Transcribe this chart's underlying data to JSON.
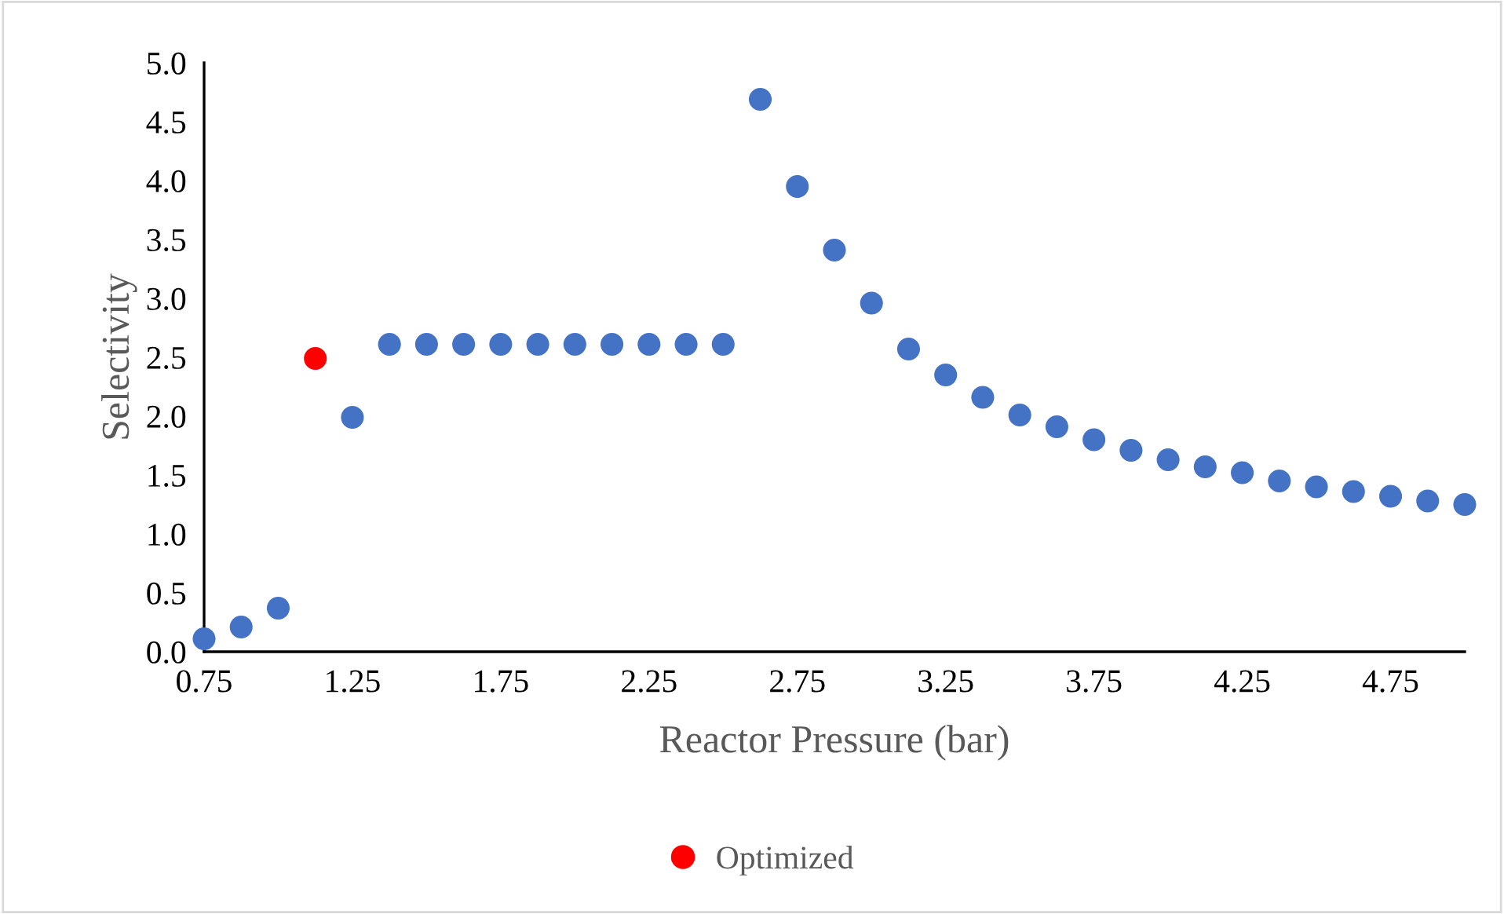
{
  "chart_data": {
    "type": "scatter",
    "xlabel": "Reactor Pressure (bar)",
    "ylabel": "Selectivity",
    "xlim": [
      0.75,
      5.0
    ],
    "ylim": [
      0,
      5
    ],
    "xticks": [
      0.75,
      1.25,
      1.75,
      2.25,
      2.75,
      3.25,
      3.75,
      4.25,
      4.75
    ],
    "yticks": [
      {
        "value": 0,
        "label": "0.0"
      },
      {
        "value": 0.5,
        "label": "0.5"
      },
      {
        "value": 1,
        "label": "1.0"
      },
      {
        "value": 1.5,
        "label": "1.5"
      },
      {
        "value": 2,
        "label": "2.0"
      },
      {
        "value": 2.5,
        "label": "2.5"
      },
      {
        "value": 3,
        "label": "3.0"
      },
      {
        "value": 3.5,
        "label": "3.5"
      },
      {
        "value": 4,
        "label": "4.0"
      },
      {
        "value": 4.5,
        "label": "4.5"
      },
      {
        "value": 5,
        "label": "5.0"
      }
    ],
    "grid": false,
    "legend": "bottom",
    "marker": "circle",
    "series": [
      {
        "color": "#4472c4",
        "x": [
          0.75,
          0.875,
          1.0,
          1.25,
          1.375,
          1.5,
          1.625,
          1.75,
          1.875,
          2.0,
          2.125,
          2.25,
          2.375,
          2.5,
          2.625,
          2.75,
          2.875,
          3.0,
          3.125,
          3.25,
          3.375,
          3.5,
          3.625,
          3.75,
          3.875,
          4.0,
          4.125,
          4.25,
          4.375,
          4.5,
          4.625,
          4.75,
          4.875,
          5.0
        ],
        "values": [
          0.11,
          0.21,
          0.37,
          1.99,
          2.61,
          2.61,
          2.61,
          2.61,
          2.61,
          2.61,
          2.61,
          2.61,
          2.61,
          2.61,
          4.69,
          3.95,
          3.41,
          2.96,
          2.57,
          2.35,
          2.16,
          2.01,
          1.91,
          1.8,
          1.71,
          1.63,
          1.57,
          1.52,
          1.45,
          1.4,
          1.36,
          1.32,
          1.28,
          1.25
        ]
      },
      {
        "name": "Optimized",
        "color": "#ff0000",
        "x": [
          1.125
        ],
        "values": [
          2.49
        ]
      }
    ]
  }
}
